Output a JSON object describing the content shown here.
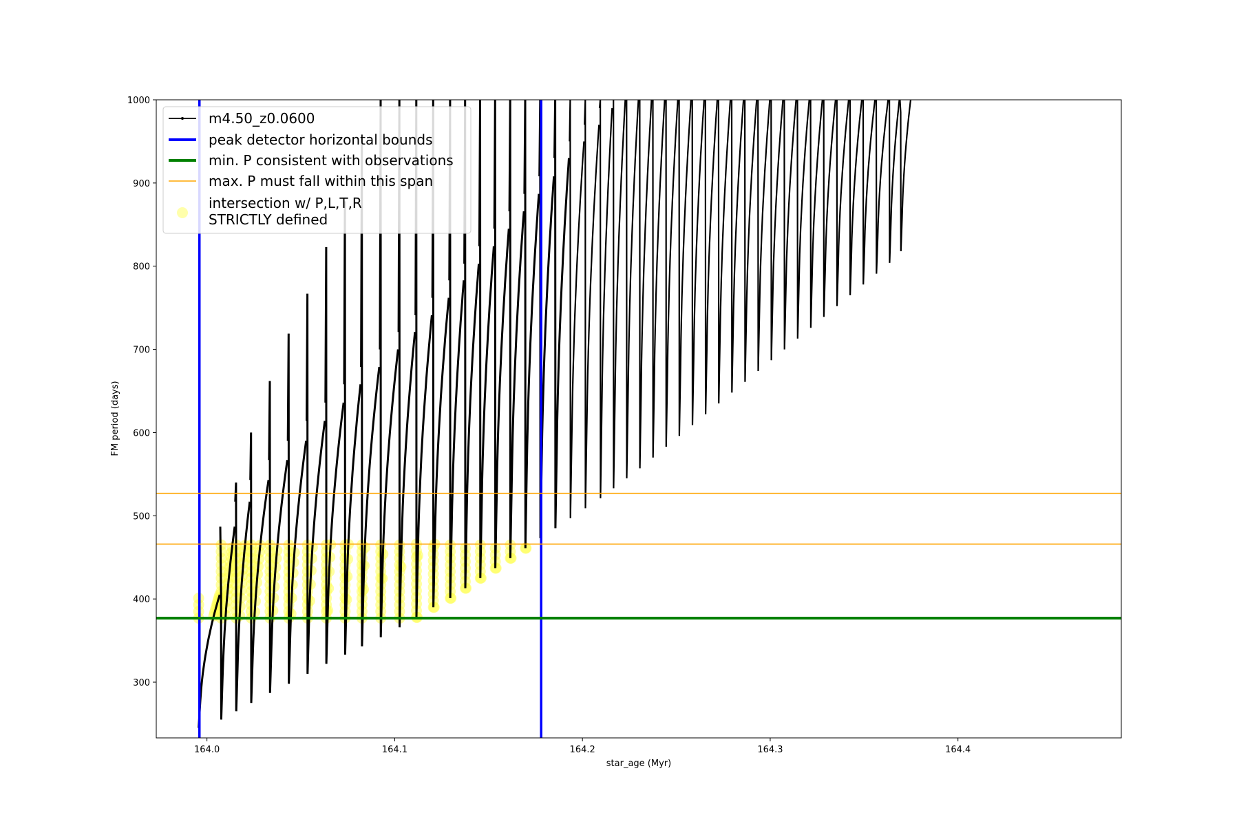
{
  "chart_data": {
    "type": "line",
    "xlabel": "star_age (Myr)",
    "ylabel": "FM period (days)",
    "xlim": [
      163.973,
      164.487
    ],
    "ylim": [
      233,
      1000
    ],
    "xticks": [
      164.0,
      164.1,
      164.2,
      164.3,
      164.4
    ],
    "xtick_labels": [
      "164.0",
      "164.1",
      "164.2",
      "164.3",
      "164.4"
    ],
    "yticks": [
      300,
      400,
      500,
      600,
      700,
      800,
      900,
      1000
    ],
    "ytick_labels": [
      "300",
      "400",
      "500",
      "600",
      "700",
      "800",
      "900",
      "1000"
    ],
    "grid": false,
    "legend_position": "upper-left",
    "series": [
      {
        "name": "m4.50_z0.0600",
        "kind": "pulse-sequence",
        "color": "#000000",
        "pulse_ages": [
          163.996,
          164.008,
          164.016,
          164.024,
          164.034,
          164.044,
          164.054,
          164.064,
          164.074,
          164.083,
          164.093,
          164.103,
          164.112,
          164.121,
          164.13,
          164.138,
          164.146,
          164.154,
          164.162,
          164.17,
          164.178,
          164.186,
          164.194,
          164.202,
          164.21,
          164.217,
          164.224,
          164.231,
          164.238,
          164.245,
          164.252,
          164.259,
          164.266,
          164.273,
          164.28,
          164.287,
          164.294,
          164.301,
          164.308,
          164.315,
          164.322,
          164.329,
          164.336,
          164.343,
          164.35,
          164.357,
          164.364,
          164.37
        ],
        "pulse_minima": [
          245,
          255,
          265,
          275,
          287,
          298,
          310,
          322,
          333,
          343,
          354,
          366,
          378,
          390,
          401,
          413,
          425,
          437,
          449,
          461,
          473,
          485,
          497,
          509,
          521,
          533,
          545,
          557,
          570,
          583,
          596,
          609,
          622,
          635,
          648,
          661,
          674,
          687,
          700,
          713,
          726,
          739,
          752,
          765,
          778,
          791,
          804,
          818
        ],
        "pulse_peaks": [
          405,
          487,
          517,
          543,
          567,
          590,
          614,
          636,
          658,
          679,
          700,
          721,
          741,
          762,
          783,
          803,
          824,
          845,
          866,
          887,
          908,
          930,
          950,
          970,
          990,
          1000,
          1000,
          1000,
          1000,
          1000,
          1000,
          1000,
          1000,
          1000,
          1000,
          1000,
          1000,
          1000,
          1000,
          1000,
          1000,
          1000,
          1000,
          1000,
          1000,
          1000,
          1000,
          1000
        ],
        "spike_tops": [
          null,
          410,
          540,
          600,
          662,
          719,
          767,
          823,
          878,
          955,
          1000,
          1000,
          1000,
          1000,
          1000,
          1000,
          1000,
          1000,
          1000,
          1000,
          1000,
          1000,
          1000,
          1000,
          1000,
          1000,
          1000,
          1000,
          1000,
          1000,
          1000,
          1000,
          1000,
          1000,
          1000,
          1000,
          1000,
          1000,
          1000,
          1000,
          1000,
          1000,
          1000,
          1000,
          1000,
          1000,
          1000,
          985
        ]
      },
      {
        "name": "peak detector horizontal bounds",
        "kind": "vline",
        "color": "#0000ff",
        "x": [
          163.996,
          164.178
        ]
      },
      {
        "name": "min. P consistent with observations",
        "kind": "hline",
        "color": "#008000",
        "y": [
          377
        ]
      },
      {
        "name": "max. P must fall within this span",
        "kind": "hline",
        "color": "#ffa500",
        "y": [
          466,
          527
        ]
      },
      {
        "name": "intersection w/ P,L,T,R\nSTRICTLY defined",
        "kind": "highlight",
        "color": "#ffff00",
        "y_range": [
          377,
          466
        ]
      }
    ]
  },
  "legend": {
    "items": [
      {
        "label": "m4.50_z0.0600",
        "color": "#000000",
        "marker": "line-dot"
      },
      {
        "label": "peak detector horizontal bounds",
        "color": "#0000ff",
        "marker": "line-thick"
      },
      {
        "label": "min. P consistent with observations",
        "color": "#008000",
        "marker": "line-thick"
      },
      {
        "label": "max. P must fall within this span",
        "color": "#ffa500",
        "marker": "line-thin"
      },
      {
        "label_line1": "intersection w/ P,L,T,R",
        "label_line2": "STRICTLY defined",
        "color": "#ffff66",
        "marker": "circle"
      }
    ]
  }
}
